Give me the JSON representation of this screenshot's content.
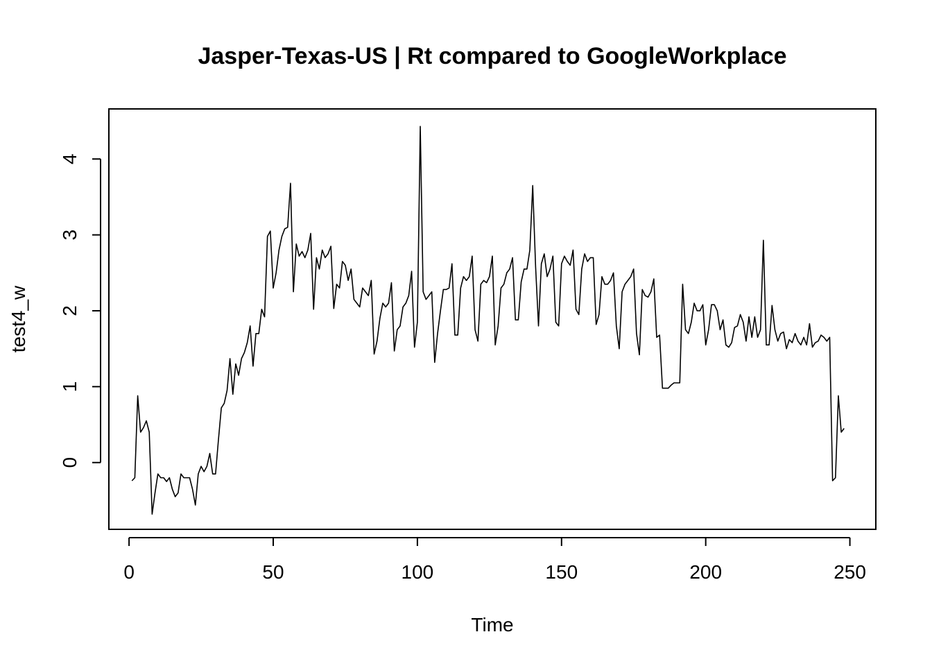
{
  "chart_data": {
    "type": "line",
    "title": "Jasper-Texas-US | Rt compared to GoogleWorkplace",
    "xlabel": "Time",
    "ylabel": "test4_w",
    "xlim": [
      -7,
      259
    ],
    "ylim": [
      -0.88,
      4.66
    ],
    "xticks": [
      0,
      50,
      100,
      150,
      200,
      250
    ],
    "yticks": [
      0,
      1,
      2,
      3,
      4
    ],
    "xtick_labels": [
      "0",
      "50",
      "100",
      "150",
      "200",
      "250"
    ],
    "ytick_labels": [
      "0",
      "1",
      "2",
      "3",
      "4"
    ],
    "grid": false,
    "legend": "none",
    "line_color": "#000000",
    "series": [
      {
        "x": [
          1,
          2,
          3,
          4,
          5,
          6,
          7,
          8,
          9,
          10,
          11,
          12,
          13,
          14,
          15,
          16,
          17,
          18,
          19,
          20,
          21,
          22,
          23,
          24,
          25,
          26,
          27,
          28,
          29,
          30,
          31,
          32,
          33,
          34,
          35,
          36,
          37,
          38,
          39,
          40,
          41,
          42,
          43,
          44,
          45,
          46,
          47,
          48,
          49,
          50,
          51,
          52,
          53,
          54,
          55,
          56,
          57,
          58,
          59,
          60,
          61,
          62,
          63,
          64,
          65,
          66,
          67,
          68,
          69,
          70,
          71,
          72,
          73,
          74,
          75,
          76,
          77,
          78,
          79,
          80,
          81,
          82,
          83,
          84,
          85,
          86,
          87,
          88,
          89,
          90,
          91,
          92,
          93,
          94,
          95,
          96,
          97,
          98,
          99,
          100,
          101,
          102,
          103,
          104,
          105,
          106,
          107,
          108,
          109,
          110,
          111,
          112,
          113,
          114,
          115,
          116,
          117,
          118,
          119,
          120,
          121,
          122,
          123,
          124,
          125,
          126,
          127,
          128,
          129,
          130,
          131,
          132,
          133,
          134,
          135,
          136,
          137,
          138,
          139,
          140,
          141,
          142,
          143,
          144,
          145,
          146,
          147,
          148,
          149,
          150,
          151,
          152,
          153,
          154,
          155,
          156,
          157,
          158,
          159,
          160,
          161,
          162,
          163,
          164,
          165,
          166,
          167,
          168,
          169,
          170,
          171,
          172,
          173,
          174,
          175,
          176,
          177,
          178,
          179,
          180,
          181,
          182,
          183,
          184,
          185,
          186,
          187,
          188,
          189,
          190,
          191,
          192,
          193,
          194,
          195,
          196,
          197,
          198,
          199,
          200,
          201,
          202,
          203,
          204,
          205,
          206,
          207,
          208,
          209,
          210,
          211,
          212,
          213,
          214,
          215,
          216,
          217,
          218,
          219,
          220,
          221,
          222,
          223,
          224,
          225,
          226,
          227,
          228,
          229,
          230,
          231,
          232,
          233,
          234,
          235,
          236,
          237,
          238,
          239,
          240,
          241,
          242,
          243,
          244,
          245,
          246,
          247,
          248
        ],
        "y": [
          -0.24,
          -0.2,
          0.88,
          0.4,
          0.46,
          0.55,
          0.4,
          -0.68,
          -0.4,
          -0.15,
          -0.2,
          -0.2,
          -0.25,
          -0.2,
          -0.35,
          -0.45,
          -0.4,
          -0.15,
          -0.2,
          -0.2,
          -0.2,
          -0.35,
          -0.56,
          -0.15,
          -0.05,
          -0.12,
          -0.05,
          0.12,
          -0.15,
          -0.15,
          0.3,
          0.72,
          0.78,
          0.95,
          1.37,
          0.9,
          1.3,
          1.15,
          1.37,
          1.45,
          1.58,
          1.8,
          1.27,
          1.7,
          1.7,
          2.02,
          1.92,
          2.98,
          3.05,
          2.3,
          2.5,
          2.8,
          2.98,
          3.08,
          3.1,
          3.68,
          2.25,
          2.88,
          2.72,
          2.78,
          2.7,
          2.8,
          3.02,
          2.02,
          2.7,
          2.55,
          2.8,
          2.7,
          2.75,
          2.85,
          2.03,
          2.35,
          2.3,
          2.65,
          2.6,
          2.4,
          2.55,
          2.15,
          2.1,
          2.05,
          2.3,
          2.25,
          2.2,
          2.4,
          1.43,
          1.6,
          1.9,
          2.1,
          2.05,
          2.1,
          2.37,
          1.47,
          1.75,
          1.8,
          2.05,
          2.1,
          2.2,
          2.52,
          1.52,
          1.85,
          4.43,
          2.25,
          2.15,
          2.2,
          2.25,
          1.32,
          1.7,
          2.0,
          2.28,
          2.28,
          2.3,
          2.62,
          1.68,
          1.68,
          2.3,
          2.45,
          2.4,
          2.45,
          2.72,
          1.75,
          1.6,
          2.35,
          2.4,
          2.37,
          2.45,
          2.72,
          1.55,
          1.8,
          2.3,
          2.35,
          2.5,
          2.55,
          2.7,
          1.88,
          1.88,
          2.38,
          2.55,
          2.55,
          2.8,
          3.65,
          2.58,
          1.8,
          2.62,
          2.75,
          2.45,
          2.55,
          2.72,
          1.85,
          1.8,
          2.62,
          2.72,
          2.65,
          2.6,
          2.8,
          2.02,
          1.95,
          2.55,
          2.75,
          2.65,
          2.7,
          2.7,
          1.82,
          1.95,
          2.45,
          2.35,
          2.35,
          2.4,
          2.5,
          1.8,
          1.5,
          2.25,
          2.35,
          2.4,
          2.45,
          2.55,
          1.7,
          1.42,
          2.28,
          2.2,
          2.18,
          2.25,
          2.42,
          1.65,
          1.68,
          0.98,
          0.98,
          0.98,
          1.02,
          1.05,
          1.05,
          1.05,
          2.35,
          1.75,
          1.7,
          1.85,
          2.1,
          2.0,
          2.0,
          2.08,
          1.55,
          1.75,
          2.08,
          2.08,
          2.0,
          1.75,
          1.88,
          1.55,
          1.52,
          1.58,
          1.78,
          1.8,
          1.95,
          1.85,
          1.6,
          1.92,
          1.65,
          1.92,
          1.65,
          1.75,
          2.93,
          1.55,
          1.55,
          2.07,
          1.75,
          1.6,
          1.7,
          1.72,
          1.5,
          1.62,
          1.58,
          1.7,
          1.6,
          1.55,
          1.65,
          1.55,
          1.83,
          1.52,
          1.58,
          1.6,
          1.68,
          1.65,
          1.6,
          1.65,
          -0.24,
          -0.2,
          0.88,
          0.4,
          0.45
        ]
      }
    ]
  }
}
